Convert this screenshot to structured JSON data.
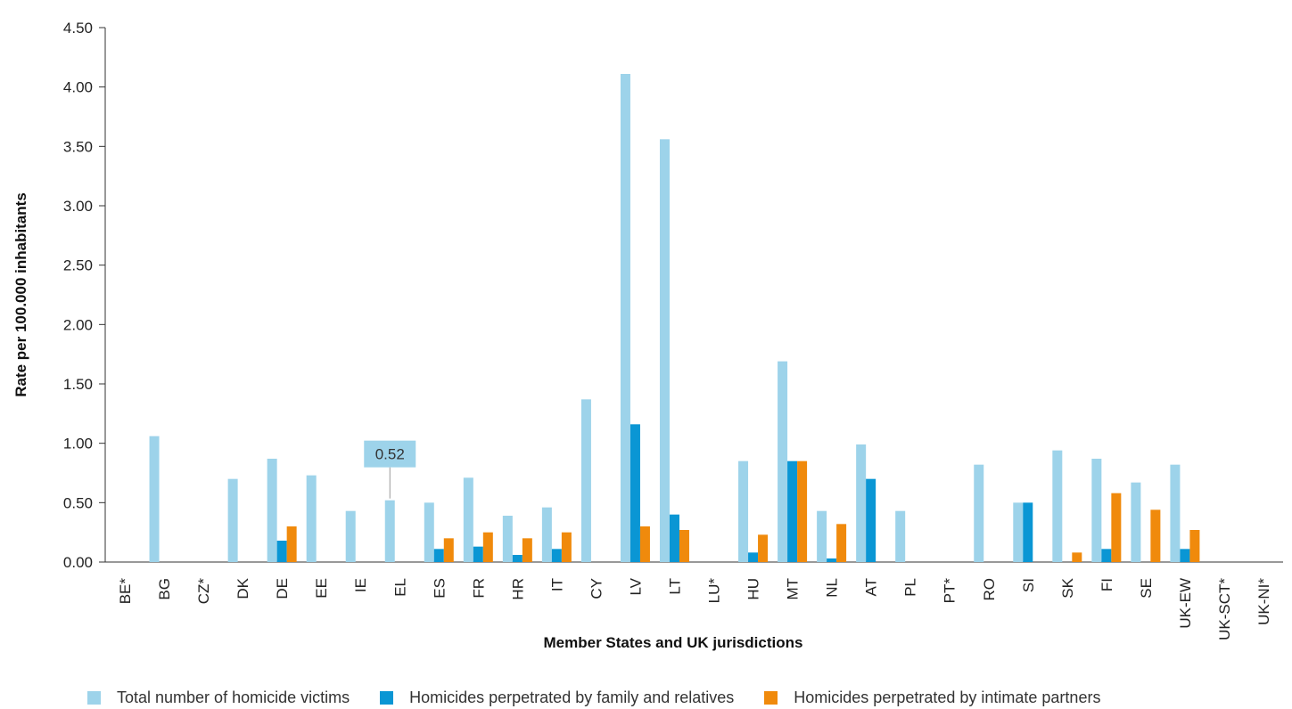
{
  "chart_data": {
    "type": "bar",
    "xlabel": "Member States and UK jurisdictions",
    "ylabel": "Rate per 100.000 inhabitants",
    "ylim": [
      0,
      4.5
    ],
    "yticks": [
      "0.00",
      "0.50",
      "1.00",
      "1.50",
      "2.00",
      "2.50",
      "3.00",
      "3.50",
      "4.00",
      "4.50"
    ],
    "grid": false,
    "legend_position": "bottom",
    "categories": [
      "BE*",
      "BG",
      "CZ*",
      "DK",
      "DE",
      "EE",
      "IE",
      "EL",
      "ES",
      "FR",
      "HR",
      "IT",
      "CY",
      "LV",
      "LT",
      "LU*",
      "HU",
      "MT",
      "NL",
      "AT",
      "PL",
      "PT*",
      "RO",
      "SI",
      "SK",
      "FI",
      "SE",
      "UK-EW",
      "UK-SCT*",
      "UK-NI*"
    ],
    "series": [
      {
        "name": "Total number of homicide victims",
        "color": "#9dd3ea",
        "values": [
          null,
          1.06,
          null,
          0.7,
          0.87,
          0.73,
          0.43,
          0.52,
          0.5,
          0.71,
          0.39,
          0.46,
          1.37,
          4.11,
          3.56,
          null,
          0.85,
          1.69,
          0.43,
          0.99,
          0.43,
          null,
          0.82,
          0.5,
          0.94,
          0.87,
          0.67,
          0.82,
          null,
          null
        ]
      },
      {
        "name": "Homicides perpetrated by family and relatives",
        "color": "#0a96d4",
        "values": [
          null,
          null,
          null,
          null,
          0.18,
          null,
          null,
          null,
          0.11,
          0.13,
          0.06,
          0.11,
          null,
          1.16,
          0.4,
          null,
          0.08,
          0.85,
          0.03,
          0.7,
          null,
          null,
          null,
          0.5,
          null,
          0.11,
          null,
          0.11,
          null,
          null
        ]
      },
      {
        "name": "Homicides perpetrated by intimate partners",
        "color": "#f08a0c",
        "values": [
          null,
          null,
          null,
          null,
          0.3,
          null,
          null,
          null,
          0.2,
          0.25,
          0.2,
          0.25,
          null,
          0.3,
          0.27,
          null,
          0.23,
          0.85,
          0.32,
          null,
          null,
          null,
          null,
          null,
          0.08,
          0.58,
          0.44,
          0.27,
          null,
          null
        ]
      }
    ],
    "annotations": [
      {
        "category": "EL",
        "series": 0,
        "text": "0.52",
        "color": "#9dd3ea"
      }
    ]
  }
}
